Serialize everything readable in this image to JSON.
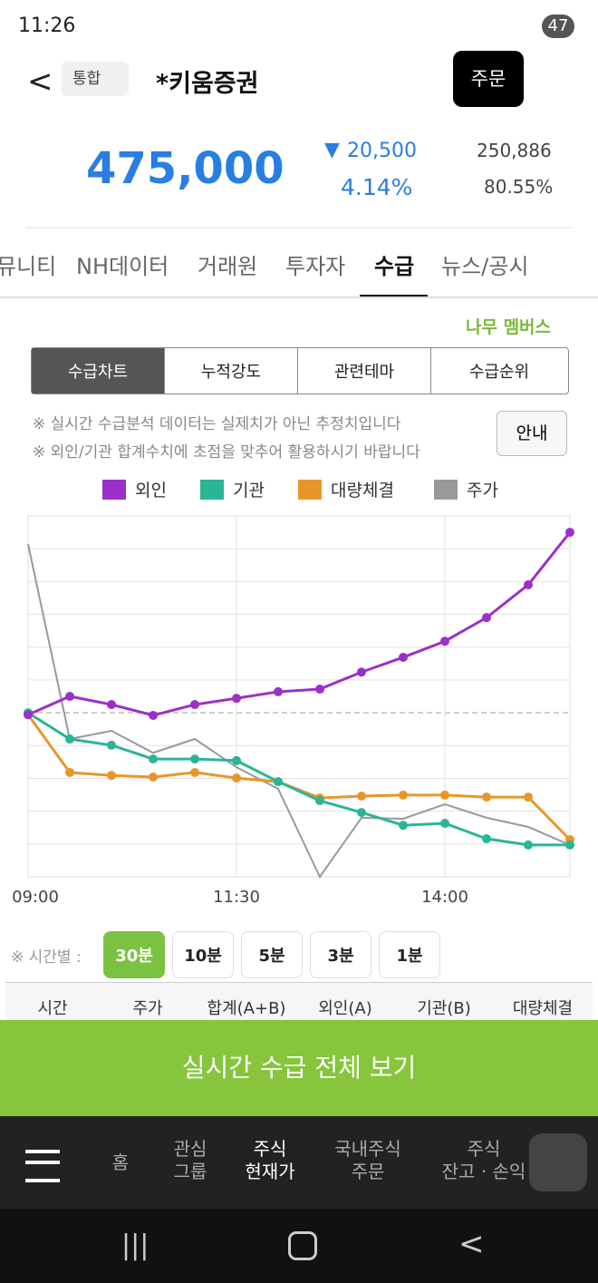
{
  "status_bar": {
    "time": "11:26",
    "battery": "47"
  },
  "header": {
    "badge": "통합",
    "title": "*키움증권",
    "order_button": "주문"
  },
  "quote": {
    "price": "475,000",
    "change": "20,500",
    "change_pct": "4.14%",
    "volume": "250,886",
    "ratio": "80.55%"
  },
  "tabs": [
    "뮤니티",
    "NH데이터",
    "거래원",
    "투자자",
    "수급",
    "뉴스/공시"
  ],
  "member": "나무 멤버스",
  "sub_tabs": [
    "수급차트",
    "누적강도",
    "관련테마",
    "수급순위"
  ],
  "notes": [
    "※ 실시간 수급분석 데이터는 실제치가 아닌 추정치입니다",
    "※ 외인/기관 합계수치에 초점을 맞추어 활용하시기 바랍니다"
  ],
  "info_button": "안내",
  "chart_data": {
    "type": "line",
    "categories": [
      "09:00",
      null,
      null,
      null,
      null,
      "11:30",
      null,
      null,
      null,
      null,
      "14:00",
      null,
      null,
      null
    ],
    "series": [
      {
        "name": "외인",
        "color": "#9b30c8",
        "markers": true,
        "values": [
          4.94,
          5.5,
          5.25,
          4.92,
          5.25,
          5.44,
          5.64,
          5.72,
          6.24,
          6.69,
          7.18,
          7.9,
          8.9,
          10.5
        ]
      },
      {
        "name": "기관",
        "color": "#2bb597",
        "markers": true,
        "values": [
          5.0,
          4.2,
          4.01,
          3.59,
          3.59,
          3.54,
          2.9,
          2.32,
          1.96,
          1.57,
          1.63,
          1.16,
          0.97,
          0.97
        ]
      },
      {
        "name": "대량체결",
        "color": "#e8962a",
        "markers": true,
        "values": [
          4.94,
          3.18,
          3.09,
          3.04,
          3.18,
          3.01,
          2.9,
          2.4,
          2.46,
          2.49,
          2.49,
          2.43,
          2.43,
          1.13
        ]
      },
      {
        "name": "주가",
        "color": "#999999",
        "markers": false,
        "values": [
          10.14,
          4.2,
          4.45,
          3.78,
          4.2,
          3.34,
          2.68,
          0,
          1.8,
          1.77,
          2.21,
          1.8,
          1.52,
          0.97
        ]
      }
    ],
    "ylim": [
      0,
      11
    ],
    "ygrid": [
      1,
      2,
      3,
      4,
      6,
      7,
      8,
      9,
      10
    ],
    "baseline": 5,
    "grid": true
  },
  "interval": {
    "label": "※ 시간별 :",
    "options": [
      "30분",
      "10분",
      "5분",
      "3분",
      "1분"
    ]
  },
  "table_headers": [
    "시간",
    "주가",
    "합계(A+B)",
    "외인(A)",
    "기관(B)",
    "대량체결"
  ],
  "cta": "실시간 수급 전체 보기",
  "bottom_nav": [
    "홈",
    "관심\n그룹",
    "주식\n현재가",
    "국내주식\n주문",
    "주식\n잔고 · 손익"
  ]
}
